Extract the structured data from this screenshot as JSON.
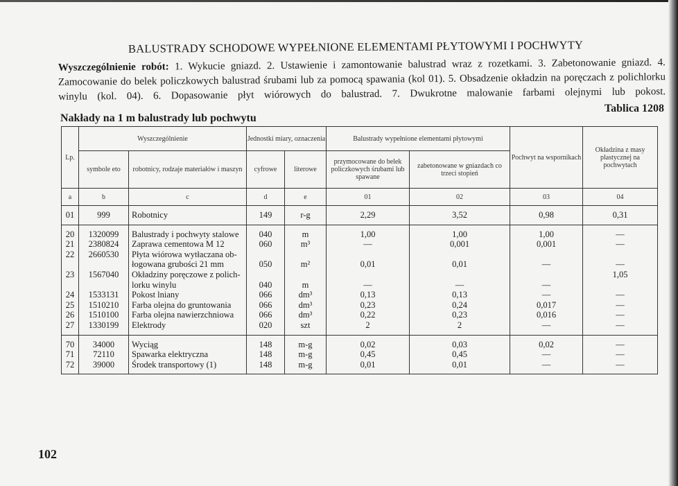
{
  "title": "BALUSTRADY SCHODOWE WYPEŁNIONE ELEMENTAMI PŁYTOWYMI I POCHWYTY",
  "description": {
    "label": "Wyszczególnienie robót:",
    "text": " 1. Wykucie gniazd. 2. Ustawienie i zamontowanie balustrad wraz z rozetkami. 3. Zabetonowanie gniazd. 4. Zamocowanie do belek policzkowych balustrad śrubami lub za pomocą spawania (kol 01). 5. Obsadzenie okładzin na poręczach z polichlorku winylu (kol. 04). 6. Dopasowanie płyt wiórowych do balustrad. 7. Dwukrotne malowanie farbami olejnymi lub pokost."
  },
  "table_number": "Tablica 1208",
  "subtitle": "Nakłady na 1 m balustrady lub pochwytu",
  "page_number": "102",
  "header": {
    "lp": "Lp.",
    "wyszczegolnienie": "Wyszczególnienie",
    "jednostki": "Jednostki miary, oznaczenia",
    "balustrady": "Balustrady wypełnione elementami płytowymi",
    "pochwyt": "Pochwyt na wspornikach",
    "okladzina": "Okładzina z masy plastycznej na pochwytach",
    "symbole": "symbole eto",
    "robotnicy": "robotnicy, rodzaje materiałów i maszyn",
    "cyfrowe": "cyfrowe",
    "literowe": "literowe",
    "przymocowane": "przymocowane do belek policzkowych śrubami lub spawane",
    "zabetonowane": "zabetonowane w gniazdach co trzeci stopień",
    "letters": [
      "a",
      "b",
      "c",
      "d",
      "e",
      "01",
      "02",
      "03",
      "04"
    ]
  },
  "groups": [
    {
      "lp": [
        "01"
      ],
      "symbol": [
        "999"
      ],
      "name": [
        "Robotnicy"
      ],
      "cyfrowe": [
        "149"
      ],
      "literowe": [
        "r-g"
      ],
      "c01": [
        "2,29"
      ],
      "c02": [
        "3,52"
      ],
      "c03": [
        "0,98"
      ],
      "c04": [
        "0,31"
      ]
    },
    {
      "lp": [
        "20",
        "21",
        "22",
        "",
        "23",
        "",
        "24",
        "25",
        "26",
        "27"
      ],
      "symbol": [
        "1320099",
        "2380824",
        "2660530",
        "",
        "1567040",
        "",
        "1533131",
        "1510210",
        "1510100",
        "1330199"
      ],
      "name": [
        "Balustrady i pochwyty stalowe",
        "Zaprawa cementowa M 12",
        "Płyta wiórowa wytłaczana ob-",
        "łogowana grubości 21 mm",
        "Okładziny poręczowe z polich-",
        "lorku winylu",
        "Pokost lniany",
        "Farba olejna do gruntowania",
        "Farba olejna nawierzchniowa",
        "Elektrody"
      ],
      "cyfrowe": [
        "040",
        "060",
        "",
        "050",
        "",
        "040",
        "066",
        "066",
        "066",
        "020"
      ],
      "literowe": [
        "m",
        "m³",
        "",
        "m²",
        "",
        "m",
        "dm³",
        "dm³",
        "dm³",
        "szt"
      ],
      "c01": [
        "1,00",
        "—",
        "",
        "0,01",
        "",
        "—",
        "0,13",
        "0,23",
        "0,22",
        "2"
      ],
      "c02": [
        "1,00",
        "0,001",
        "",
        "0,01",
        "",
        "—",
        "0,13",
        "0,24",
        "0,23",
        "2"
      ],
      "c03": [
        "1,00",
        "0,001",
        "",
        "—",
        "",
        "—",
        "—",
        "0,017",
        "0,016",
        "—"
      ],
      "c04": [
        "—",
        "—",
        "",
        "—",
        "1,05",
        "",
        "—",
        "—",
        "—",
        "—"
      ]
    },
    {
      "lp": [
        "70",
        "71",
        "72"
      ],
      "symbol": [
        "34000",
        "72110",
        "39000"
      ],
      "name": [
        "Wyciąg",
        "Spawarka elektryczna",
        "Środek transportowy (1)"
      ],
      "cyfrowe": [
        "148",
        "148",
        "148"
      ],
      "literowe": [
        "m-g",
        "m-g",
        "m-g"
      ],
      "c01": [
        "0,02",
        "0,45",
        "0,01"
      ],
      "c02": [
        "0,03",
        "0,45",
        "0,01"
      ],
      "c03": [
        "0,02",
        "—",
        "—"
      ],
      "c04": [
        "—",
        "—",
        "—"
      ]
    }
  ]
}
